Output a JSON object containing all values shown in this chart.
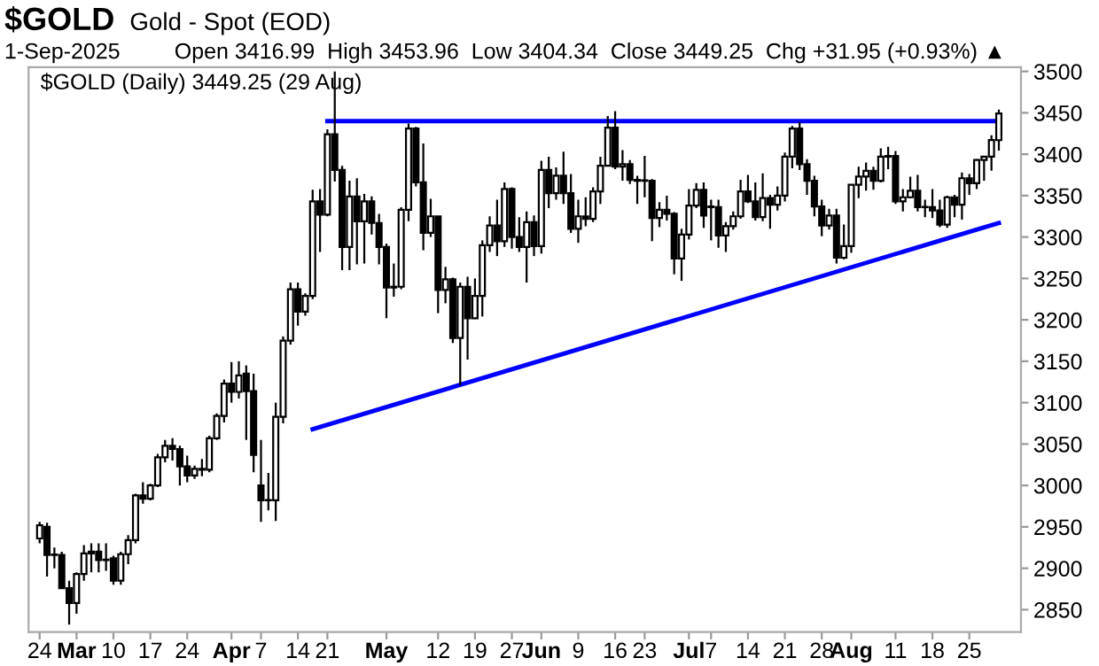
{
  "chart_data": {
    "type": "candlestick",
    "title": "$GOLD",
    "subtitle": "Gold - Spot (EOD)",
    "annotations": [
      "1-Sep-2025",
      "Open 3416.99  High 3453.96  Low 3404.34  Close 3449.25  Chg +31.95 (+0.93%) ▲",
      "$GOLD (Daily) 3449.25 (29 Aug)"
    ],
    "categories": [
      "24",
      null,
      null,
      null,
      null,
      "Mar",
      null,
      null,
      null,
      null,
      "10",
      null,
      null,
      null,
      null,
      "17",
      null,
      null,
      null,
      null,
      "24",
      null,
      null,
      null,
      null,
      null,
      "Apr",
      null,
      null,
      null,
      "7",
      null,
      null,
      null,
      null,
      "14",
      null,
      null,
      null,
      "21",
      null,
      null,
      null,
      null,
      null,
      null,
      null,
      "May",
      null,
      null,
      null,
      null,
      null,
      null,
      "12",
      null,
      null,
      null,
      null,
      "19",
      null,
      null,
      null,
      null,
      "27",
      null,
      null,
      null,
      "Jun",
      null,
      null,
      null,
      null,
      "9",
      null,
      null,
      null,
      null,
      "16",
      null,
      null,
      null,
      "23",
      null,
      null,
      null,
      null,
      null,
      "Jul",
      null,
      null,
      "7",
      null,
      null,
      null,
      null,
      "14",
      null,
      null,
      null,
      null,
      "21",
      null,
      null,
      null,
      null,
      "28",
      null,
      null,
      null,
      "Aug",
      null,
      null,
      null,
      null,
      null,
      "11",
      null,
      null,
      null,
      null,
      "18",
      null,
      null,
      null,
      null,
      "25",
      null,
      null,
      null,
      null
    ],
    "ohlc": [
      [
        2936,
        2956,
        2930,
        2952
      ],
      [
        2950,
        2955,
        2890,
        2916
      ],
      [
        2916,
        2925,
        2900,
        2916
      ],
      [
        2916,
        2920,
        2875,
        2876
      ],
      [
        2876,
        2885,
        2832,
        2858
      ],
      [
        2858,
        2895,
        2845,
        2893
      ],
      [
        2893,
        2928,
        2885,
        2918
      ],
      [
        2918,
        2930,
        2895,
        2920
      ],
      [
        2920,
        2930,
        2895,
        2910
      ],
      [
        2910,
        2930,
        2897,
        2910
      ],
      [
        2912,
        2915,
        2880,
        2885
      ],
      [
        2885,
        2920,
        2880,
        2917
      ],
      [
        2917,
        2940,
        2905,
        2934
      ],
      [
        2934,
        2990,
        2930,
        2988
      ],
      [
        2988,
        3004,
        2978,
        2984
      ],
      [
        2984,
        3002,
        2982,
        3000
      ],
      [
        3000,
        3038,
        2998,
        3034
      ],
      [
        3034,
        3055,
        3028,
        3048
      ],
      [
        3048,
        3057,
        3030,
        3044
      ],
      [
        3044,
        3048,
        3000,
        3023
      ],
      [
        3023,
        3036,
        3004,
        3012
      ],
      [
        3012,
        3024,
        3008,
        3020
      ],
      [
        3020,
        3032,
        3011,
        3019
      ],
      [
        3019,
        3060,
        3016,
        3057
      ],
      [
        3057,
        3087,
        3055,
        3084
      ],
      [
        3084,
        3128,
        3076,
        3123
      ],
      [
        3123,
        3149,
        3100,
        3113
      ],
      [
        3113,
        3150,
        3105,
        3133
      ],
      [
        3135,
        3145,
        3055,
        3114
      ],
      [
        3114,
        3135,
        3016,
        3037
      ],
      [
        3000,
        3055,
        2956,
        2982
      ],
      [
        2982,
        3015,
        2970,
        2982
      ],
      [
        2982,
        3100,
        2957,
        3083
      ],
      [
        3083,
        3180,
        3075,
        3175
      ],
      [
        3175,
        3245,
        3170,
        3237
      ],
      [
        3237,
        3245,
        3193,
        3210
      ],
      [
        3210,
        3232,
        3205,
        3229
      ],
      [
        3229,
        3357,
        3225,
        3343
      ],
      [
        3343,
        3358,
        3282,
        3327
      ],
      [
        3327,
        3430,
        3325,
        3424
      ],
      [
        3424,
        3500,
        3367,
        3381
      ],
      [
        3381,
        3386,
        3260,
        3288
      ],
      [
        3288,
        3368,
        3260,
        3349
      ],
      [
        3349,
        3371,
        3267,
        3319
      ],
      [
        3319,
        3352,
        3268,
        3343
      ],
      [
        3343,
        3349,
        3303,
        3317
      ],
      [
        3317,
        3328,
        3267,
        3288
      ],
      [
        3288,
        3292,
        3202,
        3239
      ],
      [
        3239,
        3268,
        3228,
        3240
      ],
      [
        3240,
        3336,
        3237,
        3333
      ],
      [
        3333,
        3437,
        3319,
        3431
      ],
      [
        3431,
        3433,
        3361,
        3366
      ],
      [
        3366,
        3413,
        3284,
        3305
      ],
      [
        3305,
        3346,
        3300,
        3325
      ],
      [
        3325,
        3325,
        3208,
        3236
      ],
      [
        3236,
        3264,
        3220,
        3249
      ],
      [
        3249,
        3251,
        3172,
        3178
      ],
      [
        3178,
        3245,
        3121,
        3240
      ],
      [
        3240,
        3252,
        3152,
        3202
      ],
      [
        3202,
        3250,
        3201,
        3229
      ],
      [
        3229,
        3296,
        3204,
        3290
      ],
      [
        3290,
        3325,
        3282,
        3314
      ],
      [
        3314,
        3345,
        3277,
        3295
      ],
      [
        3295,
        3366,
        3288,
        3358
      ],
      [
        3358,
        3360,
        3286,
        3300
      ],
      [
        3300,
        3324,
        3282,
        3288
      ],
      [
        3288,
        3331,
        3245,
        3318
      ],
      [
        3318,
        3326,
        3277,
        3289
      ],
      [
        3289,
        3392,
        3280,
        3381
      ],
      [
        3381,
        3397,
        3335,
        3353
      ],
      [
        3353,
        3384,
        3345,
        3374
      ],
      [
        3374,
        3403,
        3340,
        3353
      ],
      [
        3353,
        3376,
        3305,
        3310
      ],
      [
        3310,
        3345,
        3293,
        3325
      ],
      [
        3325,
        3348,
        3313,
        3322
      ],
      [
        3322,
        3360,
        3318,
        3355
      ],
      [
        3355,
        3397,
        3340,
        3386
      ],
      [
        3386,
        3446,
        3386,
        3432
      ],
      [
        3432,
        3452,
        3382,
        3385
      ],
      [
        3385,
        3405,
        3368,
        3388
      ],
      [
        3388,
        3393,
        3364,
        3369
      ],
      [
        3369,
        3374,
        3340,
        3368
      ],
      [
        3368,
        3398,
        3348,
        3368
      ],
      [
        3368,
        3370,
        3295,
        3323
      ],
      [
        3323,
        3342,
        3312,
        3333
      ],
      [
        3333,
        3350,
        3320,
        3328
      ],
      [
        3328,
        3330,
        3255,
        3274
      ],
      [
        3274,
        3310,
        3247,
        3303
      ],
      [
        3303,
        3358,
        3297,
        3338
      ],
      [
        3338,
        3365,
        3335,
        3357
      ],
      [
        3357,
        3366,
        3311,
        3326
      ],
      [
        3337,
        3345,
        3296,
        3336
      ],
      [
        3336,
        3345,
        3287,
        3302
      ],
      [
        3302,
        3318,
        3282,
        3313
      ],
      [
        3313,
        3331,
        3309,
        3325
      ],
      [
        3325,
        3369,
        3322,
        3355
      ],
      [
        3355,
        3375,
        3341,
        3343
      ],
      [
        3343,
        3366,
        3320,
        3324
      ],
      [
        3324,
        3377,
        3319,
        3347
      ],
      [
        3347,
        3351,
        3310,
        3339
      ],
      [
        3339,
        3361,
        3332,
        3350
      ],
      [
        3350,
        3402,
        3343,
        3397
      ],
      [
        3397,
        3434,
        3383,
        3431
      ],
      [
        3431,
        3439,
        3381,
        3388
      ],
      [
        3388,
        3394,
        3351,
        3368
      ],
      [
        3368,
        3374,
        3325,
        3337
      ],
      [
        3337,
        3345,
        3301,
        3314
      ],
      [
        3314,
        3334,
        3309,
        3326
      ],
      [
        3326,
        3334,
        3268,
        3275
      ],
      [
        3275,
        3315,
        3273,
        3289
      ],
      [
        3289,
        3363,
        3281,
        3363
      ],
      [
        3363,
        3385,
        3347,
        3373
      ],
      [
        3373,
        3390,
        3356,
        3380
      ],
      [
        3380,
        3385,
        3357,
        3368
      ],
      [
        3368,
        3407,
        3366,
        3397
      ],
      [
        3397,
        3409,
        3382,
        3398
      ],
      [
        3398,
        3404,
        3340,
        3343
      ],
      [
        3343,
        3358,
        3331,
        3348
      ],
      [
        3348,
        3373,
        3347,
        3356
      ],
      [
        3356,
        3375,
        3331,
        3336
      ],
      [
        3336,
        3345,
        3324,
        3336
      ],
      [
        3336,
        3358,
        3323,
        3332
      ],
      [
        3332,
        3345,
        3312,
        3315
      ],
      [
        3315,
        3350,
        3311,
        3348
      ],
      [
        3348,
        3351,
        3324,
        3339
      ],
      [
        3339,
        3378,
        3321,
        3371
      ],
      [
        3371,
        3376,
        3351,
        3365
      ],
      [
        3365,
        3394,
        3358,
        3393
      ],
      [
        3393,
        3398,
        3368,
        3397
      ],
      [
        3397,
        3423,
        3380,
        3417
      ],
      [
        3416.99,
        3453.96,
        3404.34,
        3449.25
      ]
    ],
    "series": [
      {
        "type": "line",
        "color": "#0000ff",
        "values": [
          null,
          null,
          null,
          null,
          null,
          null,
          null,
          null,
          null,
          null,
          null,
          null,
          null,
          null,
          null,
          null,
          null,
          null,
          null,
          null,
          null,
          null,
          null,
          null,
          null,
          null,
          null,
          null,
          null,
          null,
          null,
          null,
          null,
          null,
          null,
          null,
          null,
          null,
          null,
          3440,
          null,
          null,
          null,
          null,
          null,
          null,
          null,
          null,
          null,
          null,
          null,
          null,
          null,
          null,
          null,
          null,
          null,
          null,
          null,
          null,
          null,
          null,
          null,
          null,
          null,
          null,
          null,
          null,
          null,
          null,
          null,
          null,
          null,
          null,
          null,
          null,
          null,
          null,
          null,
          null,
          null,
          null,
          null,
          null,
          null,
          null,
          null,
          null,
          null,
          null,
          null,
          null,
          null,
          null,
          null,
          null,
          null,
          null,
          null,
          null,
          null,
          null,
          null,
          null,
          null,
          null,
          null,
          null,
          null,
          null,
          null,
          null,
          null,
          null,
          null,
          null,
          null,
          null,
          null,
          null,
          null,
          null,
          null,
          null,
          null,
          null,
          null,
          null,
          null,
          null,
          3440
        ]
      },
      {
        "type": "line",
        "color": "#0000ff",
        "values": [
          null,
          null,
          null,
          null,
          null,
          null,
          null,
          null,
          null,
          null,
          null,
          null,
          null,
          null,
          null,
          null,
          null,
          null,
          null,
          null,
          null,
          null,
          null,
          null,
          null,
          null,
          null,
          null,
          null,
          null,
          null,
          null,
          null,
          null,
          null,
          null,
          null,
          3068,
          null,
          null,
          null,
          null,
          null,
          null,
          null,
          null,
          null,
          null,
          null,
          null,
          null,
          null,
          null,
          null,
          null,
          null,
          null,
          null,
          null,
          null,
          null,
          null,
          null,
          null,
          null,
          null,
          null,
          null,
          null,
          null,
          null,
          null,
          null,
          null,
          null,
          null,
          null,
          null,
          null,
          null,
          null,
          null,
          null,
          null,
          null,
          null,
          null,
          null,
          null,
          null,
          null,
          null,
          null,
          null,
          null,
          null,
          null,
          null,
          null,
          null,
          null,
          null,
          null,
          null,
          null,
          null,
          null,
          null,
          null,
          null,
          null,
          null,
          null,
          null,
          null,
          null,
          null,
          null,
          null,
          null,
          null,
          null,
          null,
          null,
          null,
          null,
          null,
          null,
          null,
          null,
          3317
        ]
      }
    ],
    "ylim": [
      2823,
      3505
    ],
    "yticks": [
      2850,
      2900,
      2950,
      3000,
      3050,
      3100,
      3150,
      3200,
      3250,
      3300,
      3350,
      3400,
      3450,
      3500
    ]
  }
}
